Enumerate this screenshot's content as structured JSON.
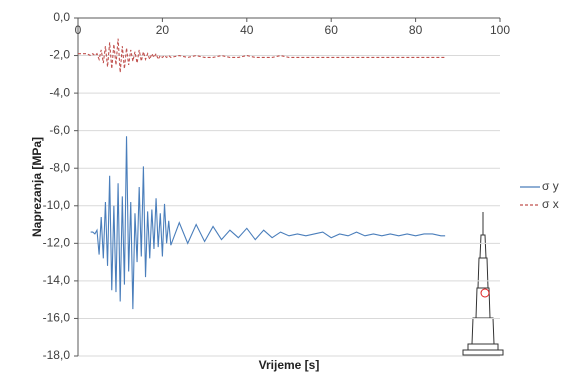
{
  "chart_data": {
    "type": "line",
    "x_label": "Vrijeme [s]",
    "y_label": "Naprezanja [MPa]",
    "xlim": [
      0,
      100
    ],
    "xticks": [
      0,
      20,
      40,
      60,
      80,
      100
    ],
    "ylim": [
      -18,
      0
    ],
    "yticks": [
      {
        "value": 0,
        "label": "0,0"
      },
      {
        "value": -2,
        "label": "-2,0"
      },
      {
        "value": -4,
        "label": "-4,0"
      },
      {
        "value": -6,
        "label": "-6,0"
      },
      {
        "value": -8,
        "label": "-8,0"
      },
      {
        "value": -10,
        "label": "-10,0"
      },
      {
        "value": -12,
        "label": "-12,0"
      },
      {
        "value": -14,
        "label": "-14,0"
      },
      {
        "value": -16,
        "label": "-16,0"
      },
      {
        "value": -18,
        "label": "-18,0"
      }
    ],
    "grid": true,
    "legend": "right",
    "x": [
      0,
      1,
      2,
      3,
      3.5,
      4,
      4.5,
      5,
      5.5,
      6,
      6.5,
      7,
      7.5,
      8,
      8.5,
      9,
      9.5,
      10,
      10.5,
      11,
      11.5,
      12,
      12.5,
      13,
      13.5,
      14,
      14.5,
      15,
      15.5,
      16,
      16.5,
      17,
      17.5,
      18,
      18.5,
      19,
      19.5,
      20,
      20.5,
      21,
      21.5,
      22,
      24,
      26,
      28,
      30,
      32,
      34,
      36,
      38,
      40,
      42,
      44,
      46,
      48,
      50,
      52,
      54,
      56,
      58,
      60,
      62,
      64,
      66,
      68,
      70,
      72,
      74,
      76,
      78,
      80,
      82,
      84,
      86,
      87
    ],
    "series": [
      {
        "name": "σ y",
        "color": "#4a7ebb",
        "line_style": "solid",
        "values": [
          null,
          null,
          null,
          -11.4,
          -11.4,
          -11.5,
          -11.3,
          -12.6,
          -10.6,
          -12.8,
          -9.8,
          -13.2,
          -8.4,
          -14.5,
          -10.0,
          -14.6,
          -8.8,
          -15.1,
          -9.5,
          -14.2,
          -6.3,
          -13.5,
          -9.8,
          -15.5,
          -10.4,
          -13.0,
          -9.0,
          -12.7,
          -7.9,
          -13.8,
          -10.3,
          -12.8,
          -10.2,
          -12.3,
          -9.6,
          -12.2,
          -10.4,
          -12.7,
          -9.9,
          -12.0,
          -10.8,
          -12.1,
          -10.9,
          -12.0,
          -11.0,
          -11.9,
          -11.1,
          -11.8,
          -11.3,
          -11.7,
          -11.2,
          -11.8,
          -11.3,
          -11.7,
          -11.4,
          -11.6,
          -11.5,
          -11.6,
          -11.5,
          -11.4,
          -11.7,
          -11.5,
          -11.6,
          -11.4,
          -11.6,
          -11.5,
          -11.6,
          -11.5,
          -11.6,
          -11.5,
          -11.6,
          -11.5,
          -11.5,
          -11.6,
          -11.6
        ]
      },
      {
        "name": "σ x",
        "color": "#c0504d",
        "line_style": "dashed",
        "values": [
          -1.9,
          -1.9,
          -1.9,
          -2.0,
          -1.9,
          -2.0,
          -1.9,
          -2.2,
          -1.7,
          -2.4,
          -1.5,
          -2.6,
          -1.3,
          -2.7,
          -1.4,
          -2.5,
          -1.1,
          -2.9,
          -1.5,
          -2.7,
          -1.6,
          -2.5,
          -1.7,
          -2.3,
          -1.8,
          -2.4,
          -1.7,
          -2.3,
          -1.8,
          -2.2,
          -1.9,
          -2.2,
          -1.9,
          -2.1,
          -1.9,
          -2.2,
          -2.0,
          -2.1,
          -2.0,
          -2.1,
          -2.0,
          -2.1,
          -2.0,
          -2.1,
          -2.0,
          -2.1,
          -2.1,
          -2.0,
          -2.1,
          -2.1,
          -2.0,
          -2.1,
          -2.1,
          -2.1,
          -2.0,
          -2.1,
          -2.1,
          -2.1,
          -2.1,
          -2.1,
          -2.1,
          -2.1,
          -2.1,
          -2.1,
          -2.1,
          -2.1,
          -2.1,
          -2.1,
          -2.1,
          -2.1,
          -2.1,
          -2.1,
          -2.1,
          -2.1,
          -2.1
        ]
      }
    ]
  }
}
